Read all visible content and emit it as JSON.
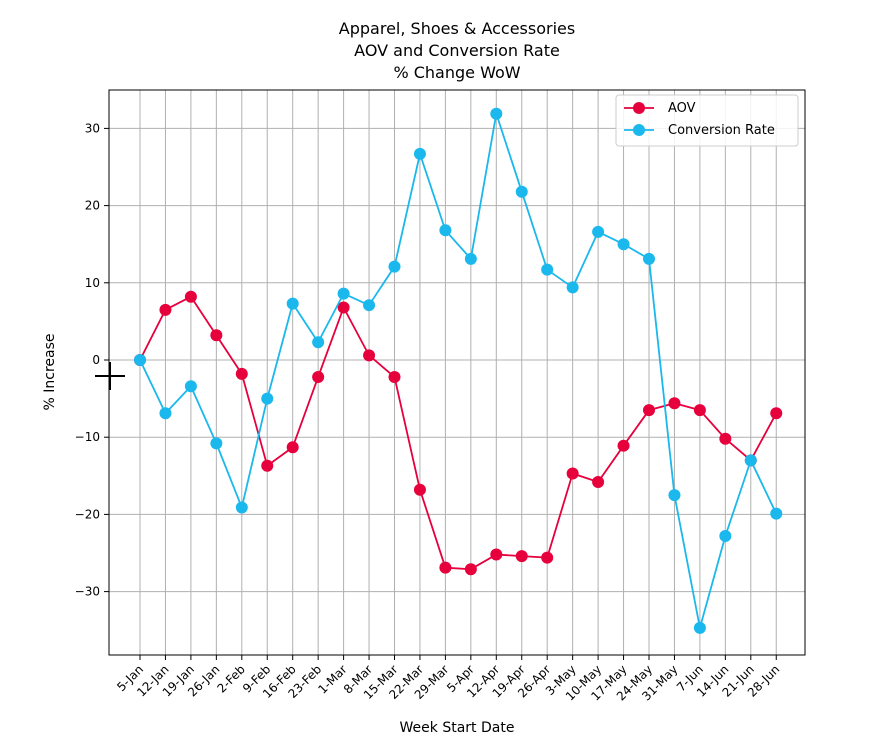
{
  "chart_data": {
    "type": "line",
    "title": [
      "Apparel, Shoes & Accessories",
      "AOV and Conversion Rate",
      "% Change WoW"
    ],
    "xlabel": "Week Start Date",
    "ylabel": "% Increase",
    "categories": [
      "5-Jan",
      "12-Jan",
      "19-Jan",
      "26-Jan",
      "2-Feb",
      "9-Feb",
      "16-Feb",
      "23-Feb",
      "1-Mar",
      "8-Mar",
      "15-Mar",
      "22-Mar",
      "29-Mar",
      "5-Apr",
      "12-Apr",
      "19-Apr",
      "26-Apr",
      "3-May",
      "10-May",
      "17-May",
      "24-May",
      "31-May",
      "7-Jun",
      "14-Jun",
      "21-Jun",
      "28-Jun"
    ],
    "ylim": [
      -38,
      35
    ],
    "yticks": [
      30,
      20,
      10,
      0,
      -10,
      -20,
      -30
    ],
    "ytick_labels": [
      "30",
      "20",
      "10",
      "0",
      "−10",
      "−20",
      "−30"
    ],
    "grid": true,
    "legend_position": "top-right",
    "series": [
      {
        "name": "AOV",
        "color": "#e6003c",
        "values": [
          0,
          6.5,
          8.2,
          3.2,
          -1.8,
          -13.7,
          -11.3,
          -2.2,
          6.8,
          0.6,
          -2.2,
          -16.8,
          -26.9,
          -27.1,
          -25.2,
          -25.4,
          -25.6,
          -14.7,
          -15.8,
          -11.1,
          -6.5,
          -5.6,
          -6.5,
          -10.2,
          -13.0,
          -6.9
        ]
      },
      {
        "name": "Conversion Rate",
        "color": "#1ab8ec",
        "values": [
          0,
          -6.9,
          -3.4,
          -10.8,
          -19.1,
          -5.0,
          7.3,
          2.3,
          8.6,
          7.1,
          12.1,
          26.7,
          16.8,
          13.1,
          31.9,
          21.8,
          11.7,
          9.4,
          16.6,
          15.0,
          13.1,
          -17.5,
          -34.7,
          -22.8,
          -13.0,
          -19.9
        ]
      }
    ]
  }
}
